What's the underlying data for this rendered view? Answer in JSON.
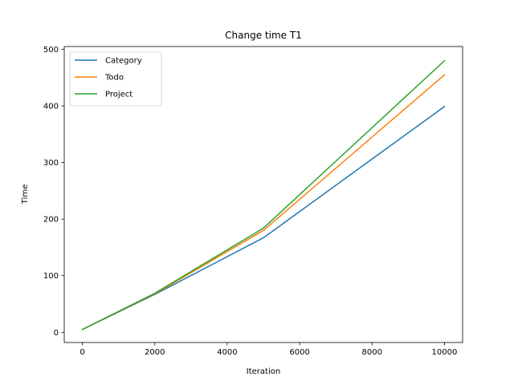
{
  "chart_data": {
    "type": "line",
    "title": "Change time T1",
    "xlabel": "Iteration",
    "ylabel": "Time",
    "x": [
      0,
      2000,
      5000,
      10000
    ],
    "xlim": [
      -500,
      10500
    ],
    "ylim": [
      -18,
      505
    ],
    "xticks": [
      0,
      2000,
      4000,
      6000,
      8000,
      10000
    ],
    "yticks": [
      0,
      100,
      200,
      300,
      400,
      500
    ],
    "grid": false,
    "legend_position": "top-left",
    "series": [
      {
        "name": "Category",
        "color": "#1f77b4",
        "values": [
          5,
          67,
          167,
          399
        ]
      },
      {
        "name": "Todo",
        "color": "#ff7f0e",
        "values": [
          5,
          68,
          180,
          455
        ]
      },
      {
        "name": "Project",
        "color": "#2ca02c",
        "values": [
          5,
          69,
          184,
          480
        ]
      }
    ]
  }
}
